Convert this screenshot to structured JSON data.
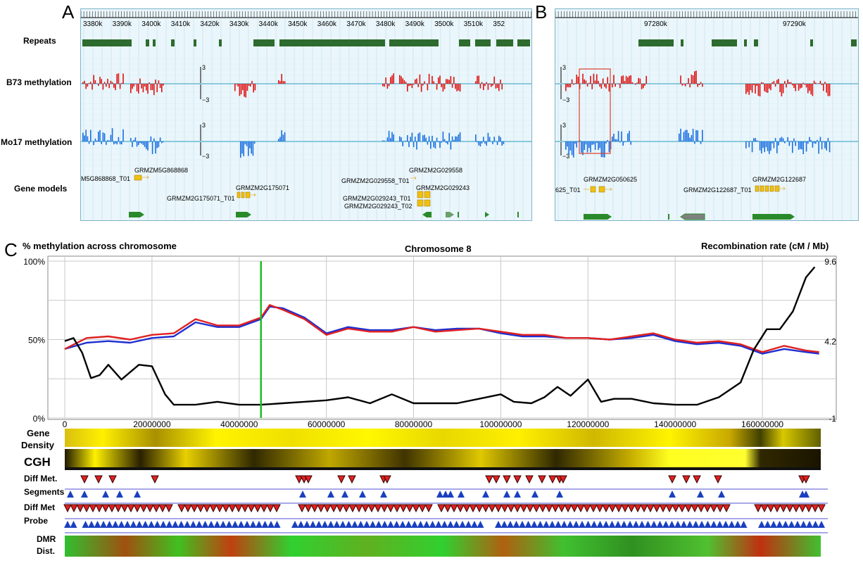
{
  "panel_a": {
    "letter": "A",
    "row_labels": [
      "Repeats",
      "B73 methylation",
      "Mo17 methylation",
      "Gene models"
    ],
    "ticks": [
      "3380k",
      "3390k",
      "3400k",
      "3410k",
      "3420k",
      "3430k",
      "3440k",
      "3450k",
      "3460k",
      "3470k",
      "3480k",
      "3490k",
      "3500k",
      "3510k",
      "352"
    ],
    "scale_top": "3",
    "scale_bottom": "−3",
    "genes": [
      "M5G868868_T01",
      "GRMZM5G868868",
      "GRMZM2G175071_T01",
      "GRMZM2G175071",
      "GRMZM2G029558_T01",
      "GRMZM2G029558",
      "GRMZM2G029243_T01",
      "GRMZM2G029243",
      "GRMZM2G029243_T02"
    ]
  },
  "panel_b": {
    "letter": "B",
    "ticks": [
      "97280k",
      "97290k"
    ],
    "scale_top": "3",
    "scale_bottom": "−3",
    "genes": [
      "625_T01",
      "GRMZM2G050625",
      "GRMZM2G122687_T01",
      "GRMZM2G122687"
    ]
  },
  "panel_c": {
    "letter": "C",
    "left_header": "% methylation across chromosome",
    "title": "Chromosome 8",
    "right_header": "Recombination rate (cM / Mb)",
    "track_labels": {
      "gene_density": [
        "Gene",
        "Density"
      ],
      "cgh": "CGH",
      "diff_met_segments": [
        "Diff Met.",
        "Segments"
      ],
      "diff_met_probe": [
        "Diff Met",
        "Probe"
      ],
      "dmr_dist": [
        "DMR",
        "Dist."
      ]
    }
  },
  "chart_data": {
    "type": "line",
    "title": "Chromosome 8",
    "xlabel": "",
    "ylabel": "% methylation across chromosome",
    "y2label": "Recombination rate (cM / Mb)",
    "x_ticks": [
      "0",
      "20000000",
      "40000000",
      "60000000",
      "80000000",
      "100000000",
      "120000000",
      "140000000",
      "160000000"
    ],
    "y_ticks": [
      "0%",
      "50%",
      "100%"
    ],
    "y2_ticks": [
      "-1",
      "4.2",
      "9.6"
    ],
    "xlim": [
      0,
      175000000
    ],
    "ylim": [
      0,
      100
    ],
    "y2lim": [
      -1,
      9.6
    ],
    "marker_x": 45000000,
    "marker_color": "#22bb22",
    "series": [
      {
        "color": "#1f2fd0",
        "axis": "left",
        "x": [
          0,
          5000000,
          10000000,
          15000000,
          20000000,
          25000000,
          30000000,
          35000000,
          40000000,
          45000000,
          47000000,
          50000000,
          55000000,
          60000000,
          65000000,
          70000000,
          75000000,
          80000000,
          85000000,
          90000000,
          95000000,
          100000000,
          105000000,
          110000000,
          115000000,
          120000000,
          125000000,
          130000000,
          135000000,
          140000000,
          145000000,
          150000000,
          155000000,
          160000000,
          165000000,
          170000000,
          173000000
        ],
        "y": [
          44,
          48,
          49,
          48,
          51,
          52,
          61,
          58,
          58,
          63,
          71,
          70,
          64,
          54,
          58,
          56,
          56,
          58,
          56,
          57,
          57,
          54,
          52,
          52,
          51,
          51,
          50,
          51,
          53,
          49,
          47,
          48,
          46,
          41,
          44,
          42,
          41
        ]
      },
      {
        "color": "#e02020",
        "axis": "left",
        "x": [
          0,
          5000000,
          10000000,
          15000000,
          20000000,
          25000000,
          30000000,
          35000000,
          40000000,
          45000000,
          47000000,
          50000000,
          55000000,
          60000000,
          65000000,
          70000000,
          75000000,
          80000000,
          85000000,
          90000000,
          95000000,
          100000000,
          105000000,
          110000000,
          115000000,
          120000000,
          125000000,
          130000000,
          135000000,
          140000000,
          145000000,
          150000000,
          155000000,
          160000000,
          165000000,
          170000000,
          173000000
        ],
        "y": [
          44,
          51,
          52,
          50,
          53,
          54,
          63,
          59,
          59,
          64,
          72,
          69,
          63,
          53,
          57,
          55,
          55,
          58,
          55,
          56,
          57,
          55,
          53,
          53,
          51,
          51,
          50,
          52,
          54,
          50,
          48,
          49,
          47,
          42,
          46,
          43,
          42
        ]
      },
      {
        "color": "#000000",
        "axis": "right",
        "x": [
          0,
          2000000,
          4000000,
          6000000,
          8000000,
          10000000,
          13000000,
          17000000,
          20000000,
          23000000,
          25000000,
          30000000,
          35000000,
          40000000,
          45000000,
          50000000,
          55000000,
          60000000,
          65000000,
          70000000,
          75000000,
          80000000,
          85000000,
          90000000,
          95000000,
          100000000,
          103000000,
          107000000,
          110000000,
          113000000,
          116000000,
          120000000,
          123000000,
          126000000,
          130000000,
          135000000,
          140000000,
          145000000,
          150000000,
          155000000,
          158000000,
          161000000,
          164000000,
          167000000,
          170000000,
          172000000
        ],
        "y": [
          4.2,
          4.4,
          3.4,
          1.7,
          1.9,
          2.6,
          1.6,
          2.6,
          2.5,
          0.6,
          -0.1,
          -0.1,
          0.1,
          -0.1,
          -0.1,
          0.0,
          0.1,
          0.2,
          0.4,
          0.0,
          0.6,
          0.0,
          0.0,
          0.0,
          0.3,
          0.6,
          0.1,
          0.0,
          0.4,
          1.1,
          0.5,
          1.6,
          0.1,
          0.3,
          0.3,
          0.0,
          -0.1,
          -0.1,
          0.4,
          1.4,
          3.6,
          5.0,
          5.0,
          6.2,
          8.5,
          9.2
        ]
      }
    ]
  }
}
